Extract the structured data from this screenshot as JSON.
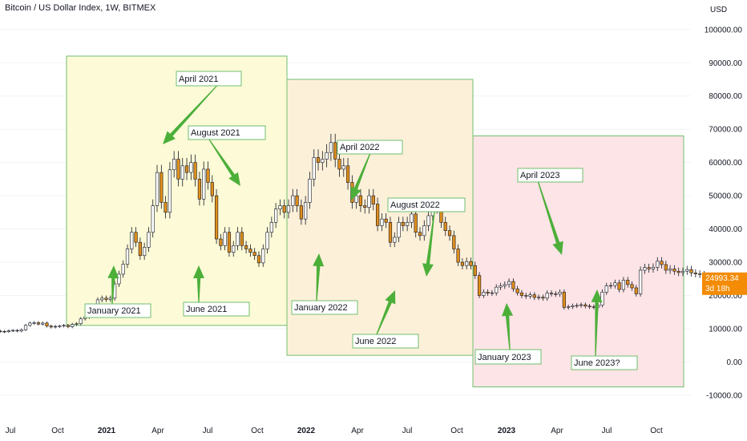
{
  "header": {
    "title": "Bitcoin / US Dollar Index, 1W, BITMEX"
  },
  "colors": {
    "up_candle": "#ffffff",
    "down_candle": "#e08e1b",
    "wick": "#131722",
    "arrow": "#4caf3a",
    "box_2021": "#fdfad7",
    "box_2022": "#fdf0d9",
    "box_2023": "#fde4e6",
    "box_border": "#6fbf6f",
    "price_badge": "#f38b05"
  },
  "chart_data": {
    "type": "candlestick",
    "title": "Bitcoin / US Dollar Index, 1W, BITMEX",
    "y_unit": "USD",
    "ylim": [
      -10000,
      100000
    ],
    "y_ticks": [
      "100000.00",
      "90000.00",
      "80000.00",
      "70000.00",
      "60000.00",
      "50000.00",
      "40000.00",
      "30000.00",
      "20000.00",
      "10000.00",
      "0.00",
      "-10000.00"
    ],
    "x_ticks": [
      {
        "label": "Jul",
        "bold": false
      },
      {
        "label": "Oct",
        "bold": false
      },
      {
        "label": "2021",
        "bold": true
      },
      {
        "label": "Apr",
        "bold": false
      },
      {
        "label": "Jul",
        "bold": false
      },
      {
        "label": "Oct",
        "bold": false
      },
      {
        "label": "2022",
        "bold": true
      },
      {
        "label": "Apr",
        "bold": false
      },
      {
        "label": "Jul",
        "bold": false
      },
      {
        "label": "Oct",
        "bold": false
      },
      {
        "label": "2023",
        "bold": true
      },
      {
        "label": "Apr",
        "bold": false
      },
      {
        "label": "Jul",
        "bold": false
      },
      {
        "label": "Oct",
        "bold": false
      }
    ],
    "x_start": "2020-06",
    "close_series": [
      9300,
      9200,
      9100,
      9400,
      9500,
      9300,
      9700,
      11000,
      11700,
      11800,
      11400,
      11700,
      10800,
      10500,
      10700,
      10800,
      11000,
      10600,
      11300,
      11500,
      13000,
      13500,
      15500,
      16300,
      18700,
      19200,
      18800,
      19200,
      23500,
      26400,
      29400,
      34000,
      39000,
      36000,
      32000,
      34500,
      39000,
      47000,
      57000,
      48000,
      45000,
      57800,
      61000,
      55000,
      59000,
      57000,
      60000,
      55000,
      49000,
      58000,
      54000,
      50000,
      37000,
      35000,
      39000,
      33000,
      35000,
      39000,
      35000,
      34000,
      33000,
      32000,
      29800,
      34000,
      39000,
      42000,
      46000,
      47000,
      45000,
      47000,
      50000,
      47000,
      43000,
      48000,
      55000,
      61500,
      60000,
      61000,
      63000,
      66000,
      61000,
      58000,
      59000,
      54000,
      48000,
      50000,
      47000,
      46500,
      50000,
      47500,
      41000,
      43000,
      42000,
      36000,
      37500,
      42000,
      41000,
      42000,
      44500,
      39000,
      38000,
      41000,
      44000,
      47000,
      46500,
      42000,
      39500,
      38000,
      34000,
      30000,
      29000,
      30200,
      29000,
      26000,
      20000,
      21000,
      20700,
      20800,
      22500,
      22900,
      23300,
      24200,
      22000,
      20800,
      20000,
      19800,
      20200,
      19400,
      19500,
      19200,
      20700,
      20500,
      20400,
      21000,
      16400,
      16600,
      16900,
      17000,
      17200,
      16800,
      16600,
      16500,
      17100,
      21000,
      22900,
      23000,
      23800,
      21800,
      24600,
      23300,
      22300,
      20500,
      27600,
      28400,
      28000,
      28500,
      30300,
      29300,
      27600,
      28000,
      27300,
      26900,
      27300,
      27800,
      26800,
      26500,
      26300,
      25800,
      25200,
      24993
    ],
    "last_price": "24993.34",
    "countdown": "3d 18h",
    "regions": [
      {
        "start": "2021-01",
        "end": "2021-11",
        "top": 92000,
        "bottom": 11000
      },
      {
        "start": "2021-11",
        "end": "2022-11",
        "top": 85000,
        "bottom": 2000
      },
      {
        "start": "2022-11",
        "end": "2023-11",
        "top": 68000,
        "bottom": -7500
      }
    ],
    "annotations": [
      {
        "label": "April 2021",
        "tip": {
          "x": 44.3,
          "y": 64000
        }
      },
      {
        "label": "August 2021",
        "tip": {
          "x": 61.5,
          "y": 52000
        }
      },
      {
        "label": "January 2021",
        "tip": {
          "x": 30.3,
          "y": 30000
        }
      },
      {
        "label": "June 2021",
        "tip": {
          "x": 52.2,
          "y": 29000
        }
      },
      {
        "label": "April 2022",
        "tip": {
          "x": 96.2,
          "y": 47000
        }
      },
      {
        "label": "August 2022",
        "tip": {
          "x": 114.4,
          "y": 25000
        }
      },
      {
        "label": "January 2022",
        "tip": {
          "x": 84.4,
          "y": 33000
        }
      },
      {
        "label": "June 2022",
        "tip": {
          "x": 105.3,
          "y": 20000
        }
      },
      {
        "label": "April 2023",
        "tip": {
          "x": 147.3,
          "y": 30000
        }
      },
      {
        "label": "January 2023",
        "tip": {
          "x": 134.4,
          "y": 17000
        }
      },
      {
        "label": "June 2023?",
        "tip": {
          "x": 158.6,
          "y": 23500
        }
      }
    ]
  }
}
